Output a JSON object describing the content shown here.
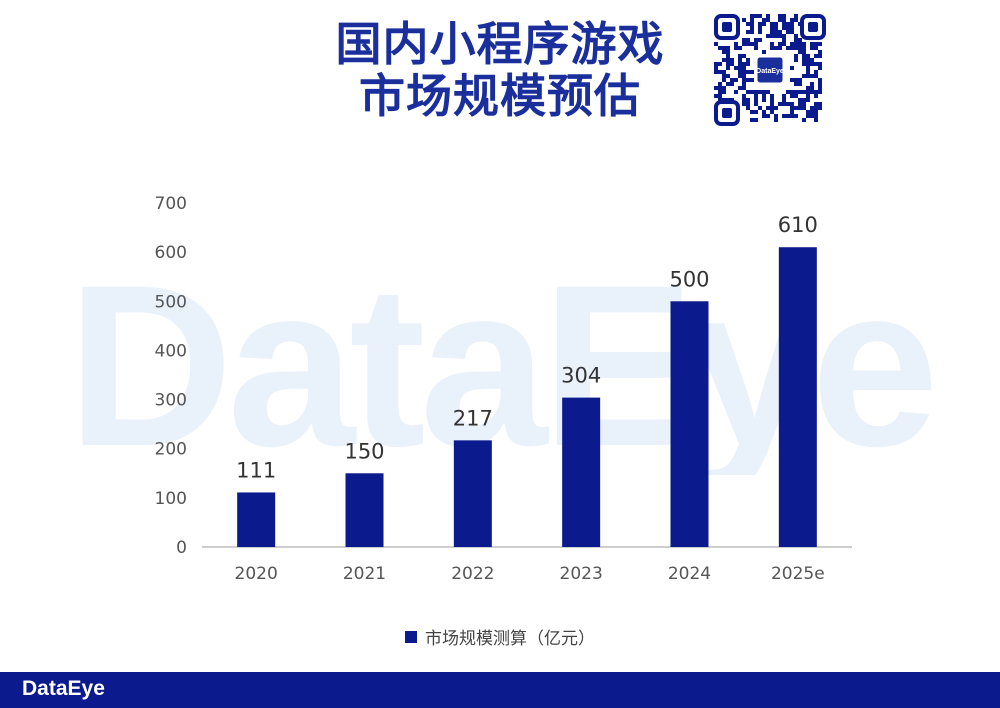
{
  "header": {
    "title_line1": "国内小程序游戏",
    "title_line2": "市场规模预估",
    "qr_logo_text": "DataEye"
  },
  "watermark": "DataEye",
  "footer": {
    "logo": "DataEye"
  },
  "colors": {
    "bar": "#0b1a8c",
    "title": "#1a2f9c",
    "footer": "#0b1a8c"
  },
  "chart_data": {
    "type": "bar",
    "categories": [
      "2020",
      "2021",
      "2022",
      "2023",
      "2024",
      "2025e"
    ],
    "series": [
      {
        "name": "市场规模测算（亿元）",
        "values": [
          111,
          150,
          217,
          304,
          500,
          610
        ]
      }
    ],
    "yticks": [
      0,
      100,
      200,
      300,
      400,
      500,
      600,
      700
    ],
    "ylim": [
      0,
      700
    ],
    "title": "",
    "xlabel": "",
    "ylabel": "",
    "grid": false,
    "legend_position": "bottom"
  }
}
